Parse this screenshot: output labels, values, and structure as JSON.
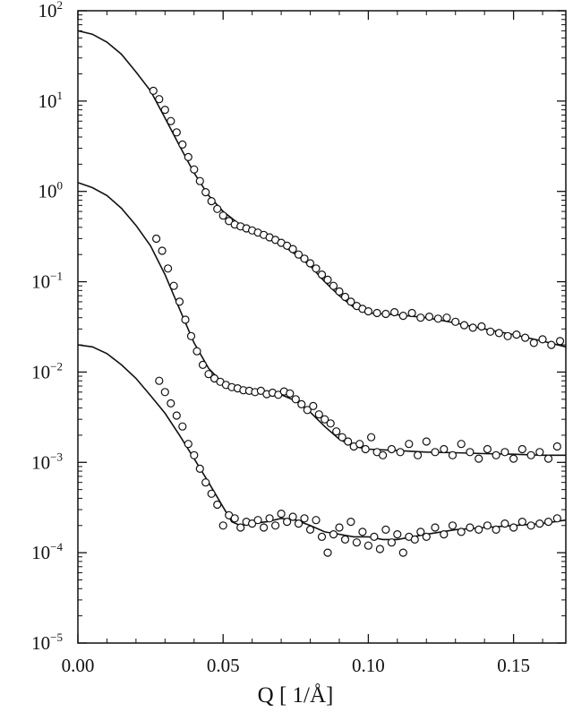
{
  "chart_data": {
    "type": "scatter",
    "title": "",
    "xlabel": "Q [ 1/Å]",
    "ylabel": "",
    "xlim": [
      0.0,
      0.168
    ],
    "ylim": [
      1e-05,
      100
    ],
    "yscale": "log",
    "grid": false,
    "x_ticks": [
      {
        "value": 0.0,
        "label": "0.00"
      },
      {
        "value": 0.05,
        "label": "0.05"
      },
      {
        "value": 0.1,
        "label": "0.10"
      },
      {
        "value": 0.15,
        "label": "0.15"
      }
    ],
    "y_ticks": [
      {
        "value": 100,
        "base": "10",
        "exp": "2"
      },
      {
        "value": 10,
        "base": "10",
        "exp": "1"
      },
      {
        "value": 1,
        "base": "10",
        "exp": "0"
      },
      {
        "value": 0.1,
        "base": "10",
        "exp": "−1"
      },
      {
        "value": 0.01,
        "base": "10",
        "exp": "−2"
      },
      {
        "value": 0.001,
        "base": "10",
        "exp": "−3"
      },
      {
        "value": 0.0001,
        "base": "10",
        "exp": "−4"
      },
      {
        "value": 1e-05,
        "base": "10",
        "exp": "−5"
      }
    ],
    "series": [
      {
        "fit": [
          [
            0.0,
            60
          ],
          [
            0.005,
            55
          ],
          [
            0.01,
            45
          ],
          [
            0.015,
            33
          ],
          [
            0.02,
            21
          ],
          [
            0.025,
            13
          ],
          [
            0.03,
            6.5
          ],
          [
            0.035,
            3.2
          ],
          [
            0.04,
            1.6
          ],
          [
            0.045,
            0.9
          ],
          [
            0.05,
            0.6
          ],
          [
            0.055,
            0.45
          ],
          [
            0.06,
            0.38
          ],
          [
            0.065,
            0.32
          ],
          [
            0.07,
            0.26
          ],
          [
            0.075,
            0.2
          ],
          [
            0.08,
            0.15
          ],
          [
            0.085,
            0.1
          ],
          [
            0.09,
            0.07
          ],
          [
            0.095,
            0.052
          ],
          [
            0.1,
            0.045
          ],
          [
            0.11,
            0.043
          ],
          [
            0.12,
            0.04
          ],
          [
            0.13,
            0.035
          ],
          [
            0.14,
            0.03
          ],
          [
            0.15,
            0.026
          ],
          [
            0.16,
            0.022
          ],
          [
            0.168,
            0.019
          ]
        ],
        "points": [
          [
            0.026,
            13
          ],
          [
            0.028,
            10.5
          ],
          [
            0.03,
            8
          ],
          [
            0.032,
            6
          ],
          [
            0.034,
            4.5
          ],
          [
            0.036,
            3.3
          ],
          [
            0.038,
            2.4
          ],
          [
            0.04,
            1.75
          ],
          [
            0.042,
            1.3
          ],
          [
            0.044,
            0.98
          ],
          [
            0.046,
            0.78
          ],
          [
            0.048,
            0.64
          ],
          [
            0.05,
            0.54
          ],
          [
            0.052,
            0.47
          ],
          [
            0.054,
            0.43
          ],
          [
            0.056,
            0.41
          ],
          [
            0.058,
            0.39
          ],
          [
            0.06,
            0.37
          ],
          [
            0.062,
            0.35
          ],
          [
            0.064,
            0.33
          ],
          [
            0.066,
            0.31
          ],
          [
            0.068,
            0.29
          ],
          [
            0.07,
            0.27
          ],
          [
            0.072,
            0.25
          ],
          [
            0.074,
            0.23
          ],
          [
            0.076,
            0.2
          ],
          [
            0.078,
            0.18
          ],
          [
            0.08,
            0.16
          ],
          [
            0.082,
            0.14
          ],
          [
            0.084,
            0.12
          ],
          [
            0.086,
            0.105
          ],
          [
            0.088,
            0.09
          ],
          [
            0.09,
            0.078
          ],
          [
            0.092,
            0.068
          ],
          [
            0.094,
            0.06
          ],
          [
            0.096,
            0.054
          ],
          [
            0.098,
            0.05
          ],
          [
            0.1,
            0.047
          ],
          [
            0.103,
            0.045
          ],
          [
            0.106,
            0.044
          ],
          [
            0.109,
            0.046
          ],
          [
            0.112,
            0.042
          ],
          [
            0.115,
            0.045
          ],
          [
            0.118,
            0.04
          ],
          [
            0.121,
            0.041
          ],
          [
            0.124,
            0.039
          ],
          [
            0.127,
            0.04
          ],
          [
            0.13,
            0.036
          ],
          [
            0.133,
            0.033
          ],
          [
            0.136,
            0.031
          ],
          [
            0.139,
            0.032
          ],
          [
            0.142,
            0.028
          ],
          [
            0.145,
            0.027
          ],
          [
            0.148,
            0.025
          ],
          [
            0.151,
            0.026
          ],
          [
            0.154,
            0.024
          ],
          [
            0.157,
            0.021
          ],
          [
            0.16,
            0.023
          ],
          [
            0.163,
            0.02
          ],
          [
            0.166,
            0.022
          ]
        ]
      },
      {
        "fit": [
          [
            0.0,
            1.25
          ],
          [
            0.005,
            1.1
          ],
          [
            0.01,
            0.9
          ],
          [
            0.015,
            0.65
          ],
          [
            0.02,
            0.42
          ],
          [
            0.025,
            0.25
          ],
          [
            0.03,
            0.12
          ],
          [
            0.035,
            0.05
          ],
          [
            0.04,
            0.021
          ],
          [
            0.045,
            0.011
          ],
          [
            0.05,
            0.0075
          ],
          [
            0.055,
            0.0065
          ],
          [
            0.06,
            0.006
          ],
          [
            0.065,
            0.0058
          ],
          [
            0.07,
            0.0056
          ],
          [
            0.075,
            0.0048
          ],
          [
            0.08,
            0.0036
          ],
          [
            0.085,
            0.0025
          ],
          [
            0.09,
            0.0018
          ],
          [
            0.095,
            0.0015
          ],
          [
            0.1,
            0.0014
          ],
          [
            0.11,
            0.00135
          ],
          [
            0.12,
            0.0013
          ],
          [
            0.13,
            0.00128
          ],
          [
            0.14,
            0.00125
          ],
          [
            0.15,
            0.00123
          ],
          [
            0.16,
            0.0012
          ],
          [
            0.168,
            0.0012
          ]
        ],
        "points": [
          [
            0.027,
            0.3
          ],
          [
            0.029,
            0.22
          ],
          [
            0.031,
            0.14
          ],
          [
            0.033,
            0.09
          ],
          [
            0.035,
            0.06
          ],
          [
            0.037,
            0.038
          ],
          [
            0.039,
            0.025
          ],
          [
            0.041,
            0.017
          ],
          [
            0.043,
            0.012
          ],
          [
            0.045,
            0.0095
          ],
          [
            0.047,
            0.0085
          ],
          [
            0.049,
            0.0078
          ],
          [
            0.051,
            0.0072
          ],
          [
            0.053,
            0.0068
          ],
          [
            0.055,
            0.0066
          ],
          [
            0.057,
            0.0063
          ],
          [
            0.059,
            0.0062
          ],
          [
            0.061,
            0.006
          ],
          [
            0.063,
            0.0062
          ],
          [
            0.065,
            0.0057
          ],
          [
            0.067,
            0.0059
          ],
          [
            0.069,
            0.0056
          ],
          [
            0.071,
            0.0061
          ],
          [
            0.073,
            0.0058
          ],
          [
            0.075,
            0.005
          ],
          [
            0.077,
            0.0044
          ],
          [
            0.079,
            0.0038
          ],
          [
            0.081,
            0.0042
          ],
          [
            0.083,
            0.0034
          ],
          [
            0.085,
            0.003
          ],
          [
            0.087,
            0.0027
          ],
          [
            0.089,
            0.0022
          ],
          [
            0.091,
            0.0019
          ],
          [
            0.093,
            0.0017
          ],
          [
            0.095,
            0.0015
          ],
          [
            0.097,
            0.0016
          ],
          [
            0.099,
            0.0014
          ],
          [
            0.101,
            0.0019
          ],
          [
            0.103,
            0.0013
          ],
          [
            0.105,
            0.0012
          ],
          [
            0.108,
            0.0014
          ],
          [
            0.111,
            0.0013
          ],
          [
            0.114,
            0.0016
          ],
          [
            0.117,
            0.0012
          ],
          [
            0.12,
            0.0017
          ],
          [
            0.123,
            0.0013
          ],
          [
            0.126,
            0.0014
          ],
          [
            0.129,
            0.0012
          ],
          [
            0.132,
            0.0016
          ],
          [
            0.135,
            0.0013
          ],
          [
            0.138,
            0.0011
          ],
          [
            0.141,
            0.0014
          ],
          [
            0.144,
            0.0012
          ],
          [
            0.147,
            0.0013
          ],
          [
            0.15,
            0.0011
          ],
          [
            0.153,
            0.0014
          ],
          [
            0.156,
            0.0012
          ],
          [
            0.159,
            0.0013
          ],
          [
            0.162,
            0.0011
          ],
          [
            0.165,
            0.0015
          ]
        ]
      },
      {
        "fit": [
          [
            0.0,
            0.02
          ],
          [
            0.005,
            0.019
          ],
          [
            0.01,
            0.016
          ],
          [
            0.015,
            0.012
          ],
          [
            0.02,
            0.0085
          ],
          [
            0.025,
            0.0055
          ],
          [
            0.03,
            0.0035
          ],
          [
            0.035,
            0.002
          ],
          [
            0.04,
            0.0011
          ],
          [
            0.045,
            0.0006
          ],
          [
            0.05,
            0.00032
          ],
          [
            0.053,
            0.00022
          ],
          [
            0.056,
            0.0002
          ],
          [
            0.06,
            0.00021
          ],
          [
            0.065,
            0.00022
          ],
          [
            0.07,
            0.00024
          ],
          [
            0.075,
            0.00023
          ],
          [
            0.08,
            0.0002
          ],
          [
            0.085,
            0.00017
          ],
          [
            0.09,
            0.00016
          ],
          [
            0.095,
            0.00015
          ],
          [
            0.1,
            0.00015
          ],
          [
            0.105,
            0.00014
          ],
          [
            0.11,
            0.00014
          ],
          [
            0.12,
            0.00016
          ],
          [
            0.13,
            0.00018
          ],
          [
            0.14,
            0.00019
          ],
          [
            0.15,
            0.0002
          ],
          [
            0.16,
            0.00021
          ],
          [
            0.168,
            0.00023
          ]
        ],
        "points": [
          [
            0.028,
            0.008
          ],
          [
            0.03,
            0.006
          ],
          [
            0.032,
            0.0045
          ],
          [
            0.034,
            0.0033
          ],
          [
            0.036,
            0.0025
          ],
          [
            0.038,
            0.0016
          ],
          [
            0.04,
            0.0012
          ],
          [
            0.042,
            0.00085
          ],
          [
            0.044,
            0.0006
          ],
          [
            0.046,
            0.00045
          ],
          [
            0.048,
            0.00034
          ],
          [
            0.05,
            0.0002
          ],
          [
            0.052,
            0.00026
          ],
          [
            0.054,
            0.00024
          ],
          [
            0.056,
            0.00019
          ],
          [
            0.058,
            0.00022
          ],
          [
            0.06,
            0.00021
          ],
          [
            0.062,
            0.00023
          ],
          [
            0.064,
            0.00019
          ],
          [
            0.066,
            0.00024
          ],
          [
            0.068,
            0.0002
          ],
          [
            0.07,
            0.00027
          ],
          [
            0.072,
            0.00022
          ],
          [
            0.074,
            0.00025
          ],
          [
            0.076,
            0.00021
          ],
          [
            0.078,
            0.00024
          ],
          [
            0.08,
            0.00018
          ],
          [
            0.082,
            0.00023
          ],
          [
            0.084,
            0.00015
          ],
          [
            0.086,
            0.0001
          ],
          [
            0.088,
            0.00016
          ],
          [
            0.09,
            0.00019
          ],
          [
            0.092,
            0.00014
          ],
          [
            0.094,
            0.00022
          ],
          [
            0.096,
            0.00013
          ],
          [
            0.098,
            0.00017
          ],
          [
            0.1,
            0.00012
          ],
          [
            0.102,
            0.00015
          ],
          [
            0.104,
            0.00011
          ],
          [
            0.106,
            0.00018
          ],
          [
            0.108,
            0.00013
          ],
          [
            0.11,
            0.00016
          ],
          [
            0.112,
            0.0001
          ],
          [
            0.114,
            0.00015
          ],
          [
            0.116,
            0.00014
          ],
          [
            0.118,
            0.00017
          ],
          [
            0.12,
            0.00015
          ],
          [
            0.123,
            0.00019
          ],
          [
            0.126,
            0.00016
          ],
          [
            0.129,
            0.0002
          ],
          [
            0.132,
            0.00017
          ],
          [
            0.135,
            0.00019
          ],
          [
            0.138,
            0.00018
          ],
          [
            0.141,
            0.0002
          ],
          [
            0.144,
            0.00018
          ],
          [
            0.147,
            0.00021
          ],
          [
            0.15,
            0.00019
          ],
          [
            0.153,
            0.00022
          ],
          [
            0.156,
            0.0002
          ],
          [
            0.159,
            0.00021
          ],
          [
            0.162,
            0.00022
          ],
          [
            0.165,
            0.00024
          ]
        ]
      }
    ]
  }
}
